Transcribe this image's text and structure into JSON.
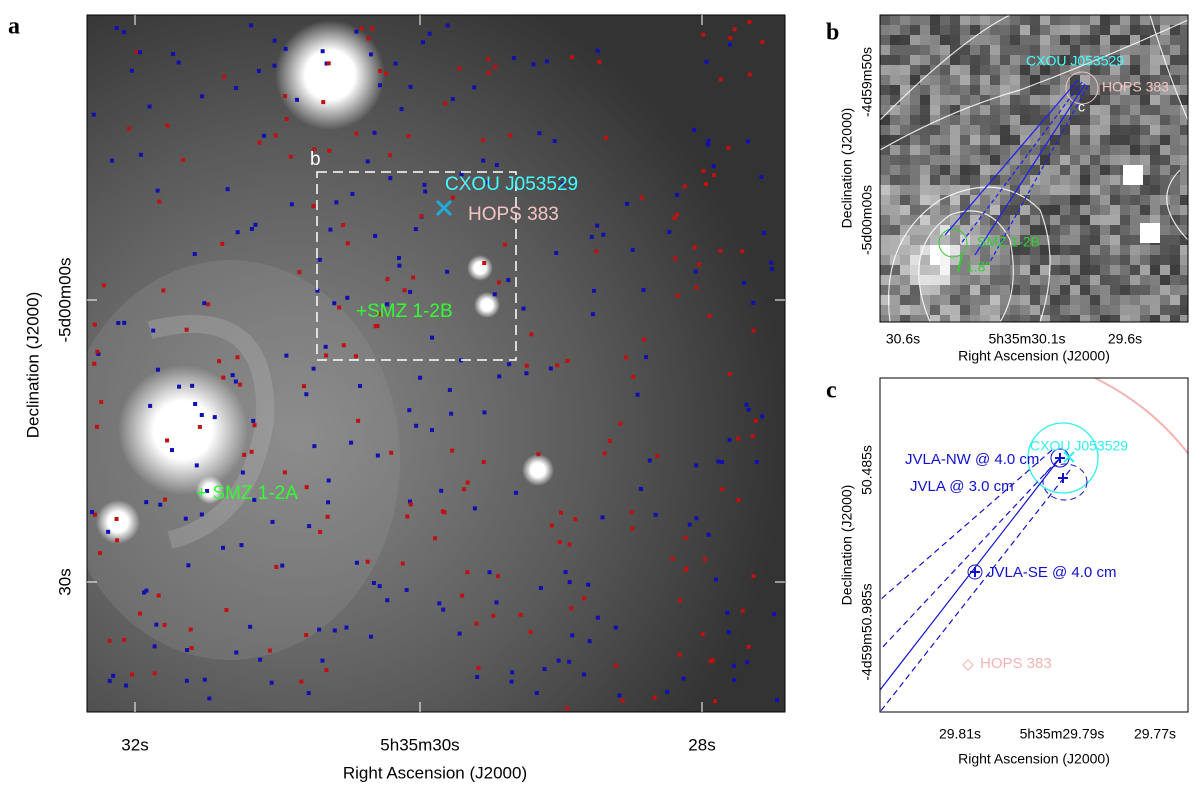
{
  "panels": [
    {
      "label": "a",
      "x_axis_label": "Right Ascension (J2000)",
      "y_axis_label": "Declination (J2000)",
      "x_tick_labels": [
        "32s",
        "5h35m30s",
        "28s"
      ],
      "y_tick_labels": [
        "-5d00m00s",
        "30s"
      ],
      "annotations": [
        "b",
        "CXOU J053529",
        "HOPS 383",
        "+SMZ 1-2B",
        "+ SMZ 1-2A"
      ]
    },
    {
      "label": "b",
      "x_axis_label": "Right Ascension (J2000)",
      "y_axis_label": "Declination (J2000)",
      "x_tick_labels": [
        "30.6s",
        "5h35m30.1s",
        "29.6s"
      ],
      "y_tick_labels": [
        "-4d59m50s",
        "-5d00m00s"
      ],
      "annotations": [
        "CXOU J053529",
        "HOPS 383",
        "c",
        "SMZ 1-2B",
        "1.8\""
      ]
    },
    {
      "label": "c",
      "x_axis_label": "Right Ascension (J2000)",
      "y_axis_label": "Declination (J2000)",
      "x_tick_labels": [
        "29.81s",
        "5h35m29.79s",
        "29.77s"
      ],
      "y_tick_labels": [
        "50.485s",
        "-4d59m50.985s"
      ],
      "annotations": [
        "CXOU J053529",
        "JVLA-NW @ 4.0 cm",
        "JVLA @ 3.0 cm",
        "JVLA-SE @ 4.0 cm",
        "HOPS 383"
      ]
    }
  ]
}
